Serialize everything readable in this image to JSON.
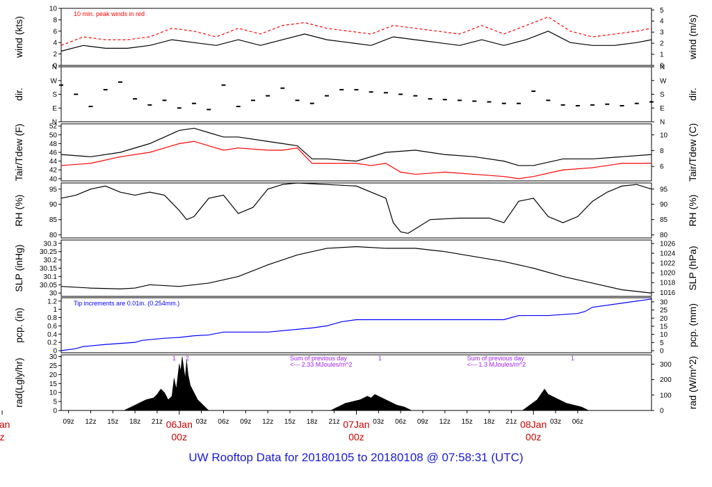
{
  "footer": {
    "title": "UW Rooftop Data for 20180105  to  20180108 @ 07:58:31  (UTC)"
  },
  "chart_data": [
    {
      "type": "line",
      "id": "wind",
      "left_label": "wind (kts)",
      "right_label": "wind (m/s)",
      "ylim": [
        0,
        10
      ],
      "left_ticks": [
        0,
        2,
        4,
        6,
        8,
        10
      ],
      "right_ticks": [
        0,
        1,
        2,
        3,
        4,
        5
      ],
      "annotation": "10 min. peak winds in red",
      "series": [
        {
          "color": "#000000",
          "style": "line",
          "x": [
            0,
            3,
            6,
            9,
            12,
            15,
            18,
            21,
            24,
            27,
            30,
            33,
            36,
            39,
            42,
            45,
            48,
            51,
            54,
            57,
            60,
            63,
            66,
            69,
            72,
            75,
            78,
            80
          ],
          "y": [
            2.5,
            3.5,
            3.0,
            3.0,
            3.5,
            4.5,
            4.0,
            3.5,
            4.5,
            3.5,
            4.5,
            5.5,
            4.5,
            4.0,
            3.5,
            5.0,
            4.5,
            4.0,
            3.5,
            4.5,
            3.5,
            4.5,
            6.0,
            4.0,
            3.5,
            3.5,
            4.0,
            4.5
          ]
        },
        {
          "color": "#ff0000",
          "style": "dash",
          "x": [
            0,
            3,
            6,
            9,
            12,
            15,
            18,
            21,
            24,
            27,
            30,
            33,
            36,
            39,
            42,
            45,
            48,
            51,
            54,
            57,
            60,
            63,
            66,
            69,
            72,
            75,
            78,
            80
          ],
          "y": [
            3.5,
            5.0,
            4.5,
            4.5,
            5.0,
            6.5,
            6.0,
            5.0,
            6.5,
            5.5,
            7.0,
            7.5,
            6.5,
            6.0,
            5.5,
            7.0,
            6.5,
            6.0,
            5.5,
            7.0,
            5.5,
            7.0,
            8.5,
            6.0,
            5.0,
            5.5,
            6.0,
            6.5
          ]
        }
      ]
    },
    {
      "type": "scatter",
      "id": "dir",
      "left_label": "dir.",
      "right_label": "dir.",
      "ylim": [
        0,
        360
      ],
      "left_tick_labels": [
        "N",
        "E",
        "S",
        "W",
        "N"
      ],
      "right_tick_labels": [
        "N",
        "E",
        "S",
        "W",
        "N"
      ],
      "tick_values": [
        0,
        90,
        180,
        270,
        360
      ],
      "series": [
        {
          "color": "#000000",
          "x": [
            0,
            2,
            4,
            6,
            8,
            10,
            12,
            14,
            16,
            18,
            20,
            22,
            24,
            26,
            28,
            30,
            32,
            34,
            36,
            38,
            40,
            42,
            44,
            46,
            48,
            50,
            52,
            54,
            56,
            58,
            60,
            62,
            64,
            66,
            68,
            70,
            72,
            74,
            76,
            78,
            80
          ],
          "y": [
            240,
            180,
            100,
            210,
            260,
            150,
            110,
            140,
            90,
            120,
            80,
            240,
            100,
            140,
            170,
            220,
            140,
            120,
            170,
            210,
            210,
            195,
            190,
            180,
            170,
            150,
            145,
            140,
            135,
            130,
            120,
            120,
            200,
            140,
            110,
            105,
            110,
            115,
            105,
            120,
            130
          ]
        }
      ]
    },
    {
      "type": "line",
      "id": "temp",
      "left_label": "Tair/Tdew (F)",
      "right_label": "Tair/Tdew (C)",
      "ylim": [
        39.5,
        52.5
      ],
      "left_ticks": [
        40,
        42,
        44,
        46,
        48,
        50,
        52
      ],
      "right_ticks": [
        6,
        8,
        10
      ],
      "series": [
        {
          "color": "#000000",
          "x": [
            0,
            4,
            8,
            12,
            14,
            16,
            18,
            20,
            22,
            24,
            28,
            30,
            32,
            34,
            36,
            40,
            44,
            48,
            52,
            56,
            60,
            62,
            64,
            68,
            72,
            76,
            80
          ],
          "y": [
            45.5,
            45.0,
            46.0,
            48.0,
            49.5,
            51.0,
            51.5,
            50.5,
            49.5,
            49.5,
            48.5,
            48.0,
            47.5,
            44.5,
            44.5,
            44.0,
            46.0,
            46.5,
            45.5,
            45.0,
            44.0,
            43.0,
            43.0,
            44.5,
            44.5,
            45.0,
            45.5
          ]
        },
        {
          "color": "#ff0000",
          "x": [
            0,
            4,
            8,
            12,
            14,
            16,
            18,
            20,
            22,
            24,
            28,
            30,
            32,
            34,
            36,
            40,
            42,
            44,
            46,
            48,
            52,
            56,
            60,
            62,
            64,
            68,
            72,
            76,
            80
          ],
          "y": [
            43.0,
            43.5,
            45.0,
            46.0,
            47.0,
            48.0,
            48.5,
            47.5,
            46.5,
            47.0,
            46.5,
            46.5,
            47.0,
            43.5,
            43.5,
            43.5,
            43.0,
            43.5,
            41.5,
            41.0,
            41.5,
            41.0,
            40.5,
            40.0,
            40.5,
            42.0,
            42.5,
            43.5,
            43.5
          ]
        }
      ]
    },
    {
      "type": "line",
      "id": "rh",
      "left_label": "RH (%)",
      "right_label": "RH (%)",
      "ylim": [
        79,
        97
      ],
      "left_ticks": [
        80,
        85,
        90,
        95
      ],
      "right_ticks": [
        80,
        85,
        90,
        95
      ],
      "series": [
        {
          "color": "#000000",
          "x": [
            0,
            2,
            4,
            6,
            8,
            10,
            12,
            14,
            16,
            17,
            18,
            20,
            22,
            24,
            26,
            28,
            30,
            32,
            36,
            40,
            44,
            45,
            46,
            47,
            48,
            50,
            54,
            58,
            60,
            62,
            64,
            66,
            68,
            70,
            72,
            74,
            76,
            78,
            80
          ],
          "y": [
            92,
            93,
            95,
            96,
            94,
            93,
            94,
            93,
            88,
            85,
            86,
            92,
            93,
            87,
            89,
            95,
            96.5,
            97,
            96.5,
            96,
            92,
            84,
            81,
            80.5,
            82,
            85,
            85.5,
            85.5,
            84,
            91,
            92,
            86,
            84,
            86,
            91,
            94,
            96,
            96.5,
            95
          ]
        }
      ]
    },
    {
      "type": "line",
      "id": "slp",
      "left_label": "SLP (inHg)",
      "right_label": "SLP (hPa)",
      "ylim": [
        29.98,
        30.32
      ],
      "left_ticks": [
        30.0,
        30.05,
        30.1,
        30.15,
        30.2,
        30.25,
        30.3
      ],
      "right_ticks": [
        1016,
        1018,
        1020,
        1022,
        1024,
        1026
      ],
      "right_tick_inhg": [
        30.004,
        30.063,
        30.122,
        30.181,
        30.24,
        30.299
      ],
      "series": [
        {
          "color": "#000000",
          "x": [
            0,
            4,
            8,
            10,
            12,
            16,
            20,
            24,
            28,
            32,
            36,
            40,
            44,
            48,
            52,
            56,
            60,
            64,
            68,
            72,
            76,
            80
          ],
          "y": [
            30.04,
            30.03,
            30.025,
            30.03,
            30.05,
            30.04,
            30.06,
            30.1,
            30.17,
            30.23,
            30.27,
            30.28,
            30.27,
            30.27,
            30.25,
            30.22,
            30.19,
            30.15,
            30.1,
            30.06,
            30.02,
            30.0
          ]
        }
      ]
    },
    {
      "type": "line",
      "id": "pcp",
      "left_label": "pcp. (in)",
      "right_label": "pcp. (mm)",
      "ylim": [
        -0.05,
        1.28
      ],
      "left_ticks": [
        0.0,
        0.2,
        0.4,
        0.6,
        0.8,
        1.0,
        1.2
      ],
      "right_ticks": [
        0,
        5,
        10,
        15,
        20,
        25,
        30
      ],
      "annotation": "Tip increments are 0.01in. (0.254mm.)",
      "series": [
        {
          "color": "#0000ff",
          "x": [
            0,
            2,
            3,
            6,
            10,
            11,
            14,
            16,
            18,
            20,
            22,
            24,
            26,
            28,
            34,
            36,
            37,
            38,
            40,
            42,
            44,
            48,
            52,
            56,
            60,
            61,
            62,
            64,
            66,
            70,
            71,
            72,
            76,
            80
          ],
          "y": [
            0.0,
            0.05,
            0.1,
            0.15,
            0.2,
            0.25,
            0.3,
            0.32,
            0.36,
            0.38,
            0.45,
            0.45,
            0.45,
            0.45,
            0.55,
            0.6,
            0.65,
            0.7,
            0.75,
            0.75,
            0.75,
            0.75,
            0.75,
            0.75,
            0.75,
            0.8,
            0.85,
            0.85,
            0.85,
            0.9,
            0.95,
            1.05,
            1.15,
            1.25
          ]
        }
      ]
    },
    {
      "type": "area",
      "id": "rad",
      "left_label": "rad(Lgly/hr)",
      "right_label": "rad (W/m^2)",
      "ylim": [
        0,
        31
      ],
      "left_ticks": [
        0,
        5,
        10,
        15,
        20,
        25,
        30
      ],
      "right_ticks": [
        0,
        100,
        200,
        300
      ],
      "right_tick_lgly": [
        0,
        8.6,
        17.2,
        25.8
      ],
      "annotations": [
        {
          "text": "Sum of previous day",
          "color": "#a020f0"
        },
        {
          "text": "<--- 2.33 MJoules/m^2",
          "color": "#a020f0"
        },
        {
          "text": "Sum of previous day",
          "color": "#a020f0"
        },
        {
          "text": "<--- 1.3 MJoules/m^2",
          "color": "#a020f0"
        }
      ],
      "markers": [
        {
          "text": "1",
          "x": 15.3,
          "color": "#a020f0"
        },
        {
          "text": "2",
          "x": 17.1,
          "color": "#a020f0"
        },
        {
          "text": "1",
          "x": 43.2,
          "color": "#a020f0"
        },
        {
          "text": "1",
          "x": 69.3,
          "color": "#a020f0"
        }
      ],
      "series": [
        {
          "color": "#000000",
          "x": [
            8.5,
            9.5,
            10.5,
            11.5,
            12.5,
            13.0,
            13.5,
            14.0,
            14.5,
            15.0,
            15.3,
            15.6,
            16.0,
            16.2,
            16.4,
            16.6,
            16.8,
            17.0,
            17.2,
            17.5,
            18.0,
            18.5,
            19.0,
            19.5,
            20.0,
            36.5,
            37.5,
            38.5,
            39.5,
            40.5,
            41.0,
            41.5,
            42.0,
            42.5,
            43.0,
            43.5,
            44.0,
            44.5,
            45.0,
            45.5,
            46.5,
            47.5,
            62.5,
            63.5,
            64.5,
            65.0,
            65.5,
            66.0,
            66.5,
            67.0,
            67.5,
            68.0,
            68.5,
            69.5,
            70.5,
            71.0,
            71.5
          ],
          "y": [
            0,
            2,
            4,
            6,
            7,
            9,
            12,
            10,
            6,
            8,
            18,
            12,
            26,
            22,
            30,
            24,
            18,
            28,
            20,
            14,
            10,
            6,
            4,
            2,
            0,
            0,
            2,
            4,
            5,
            6,
            7,
            8,
            7,
            9,
            8,
            7,
            6,
            5,
            4,
            3,
            2,
            0,
            0,
            3,
            6,
            9,
            12,
            9,
            8,
            7,
            6,
            5,
            4,
            3,
            2,
            1,
            0
          ]
        }
      ]
    },
    {
      "type": "x-axis",
      "id": "time",
      "xlim": [
        0,
        80
      ],
      "note": "x is hours since the start of the record",
      "tick_labels": [
        "09z",
        "12z",
        "15z",
        "18z",
        "21z",
        "03z",
        "06z",
        "09z",
        "12z",
        "15z",
        "18z",
        "21z",
        "03z",
        "06z",
        "09z",
        "12z",
        "15z",
        "18z",
        "21z",
        "03z",
        "06z"
      ],
      "tick_hours": [
        1,
        4,
        7,
        10,
        13,
        19,
        22,
        25,
        28,
        31,
        34,
        37,
        43,
        46,
        49,
        52,
        55,
        58,
        61,
        67,
        70
      ],
      "day_labels": [
        {
          "date": "Jan",
          "time": "z",
          "x": -8
        },
        {
          "date": "06Jan",
          "time": "00z",
          "x": 16
        },
        {
          "date": "07Jan",
          "time": "00z",
          "x": 40
        },
        {
          "date": "08Jan",
          "time": "00z",
          "x": 64
        }
      ]
    }
  ]
}
